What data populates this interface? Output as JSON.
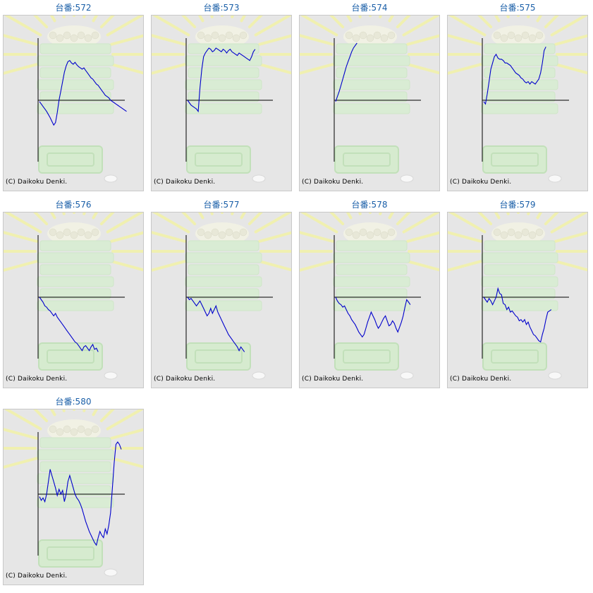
{
  "machine_prefix": "台番:",
  "copyright": "(C) Daikoku Denki.",
  "line_color": "#0000cc",
  "link_color": "#1a5fa8",
  "background_image": "slot-machine-watermark-icon",
  "machines": [
    {
      "number": "572",
      "chart_data": {
        "type": "line",
        "x_range": [
          0,
          100
        ],
        "y_range": [
          -100,
          100
        ],
        "values": [
          -2,
          -6,
          -10,
          -14,
          -18,
          -23,
          -28,
          -34,
          -40,
          -36,
          -20,
          0,
          15,
          30,
          45,
          55,
          62,
          64,
          60,
          58,
          61,
          57,
          54,
          52,
          50,
          52,
          48,
          44,
          40,
          36,
          34,
          30,
          26,
          24,
          20,
          16,
          12,
          8,
          6,
          4,
          0,
          -2,
          -4,
          -6,
          -8,
          -10,
          -12,
          -14,
          -16,
          -18
        ]
      }
    },
    {
      "number": "573",
      "chart_data": {
        "type": "line",
        "x_range": [
          0,
          100
        ],
        "y_range": [
          -100,
          100
        ],
        "values": [
          0,
          -4,
          -8,
          -10,
          -12,
          -14,
          -18,
          20,
          50,
          70,
          76,
          80,
          84,
          82,
          78,
          80,
          84,
          82,
          80,
          78,
          82,
          80,
          76,
          80,
          82,
          78,
          76,
          74,
          72,
          76,
          74,
          72,
          70,
          68,
          66,
          64,
          70,
          78,
          82
        ]
      }
    },
    {
      "number": "574",
      "chart_data": {
        "type": "line",
        "x_range": [
          0,
          100
        ],
        "y_range": [
          -100,
          100
        ],
        "values": [
          -2,
          6,
          14,
          24,
          34,
          44,
          54,
          62,
          70,
          78,
          84,
          88,
          92
        ]
      }
    },
    {
      "number": "575",
      "chart_data": {
        "type": "line",
        "x_range": [
          0,
          100
        ],
        "y_range": [
          -100,
          100
        ],
        "values": [
          -2,
          -6,
          10,
          30,
          50,
          60,
          70,
          74,
          68,
          66,
          66,
          64,
          60,
          60,
          58,
          56,
          52,
          48,
          44,
          42,
          40,
          36,
          34,
          30,
          28,
          30,
          26,
          30,
          28,
          26,
          30,
          34,
          44,
          60,
          80,
          86
        ]
      }
    },
    {
      "number": "576",
      "chart_data": {
        "type": "line",
        "x_range": [
          0,
          100
        ],
        "y_range": [
          -100,
          100
        ],
        "values": [
          0,
          -4,
          -8,
          -14,
          -16,
          -20,
          -22,
          -26,
          -30,
          -26,
          -32,
          -36,
          -40,
          -44,
          -48,
          -52,
          -56,
          -60,
          -64,
          -68,
          -72,
          -74,
          -78,
          -82,
          -86,
          -80,
          -78,
          -82,
          -86,
          -80,
          -76,
          -84,
          -82,
          -88
        ]
      }
    },
    {
      "number": "577",
      "chart_data": {
        "type": "line",
        "x_range": [
          0,
          100
        ],
        "y_range": [
          -100,
          100
        ],
        "values": [
          0,
          -4,
          -2,
          -6,
          -10,
          -14,
          -10,
          -6,
          -12,
          -18,
          -24,
          -30,
          -26,
          -18,
          -26,
          -20,
          -14,
          -24,
          -30,
          -36,
          -42,
          -48,
          -54,
          -60,
          -64,
          -68,
          -72,
          -76,
          -80,
          -86,
          -80,
          -84,
          -88
        ]
      }
    },
    {
      "number": "578",
      "chart_data": {
        "type": "line",
        "x_range": [
          0,
          100
        ],
        "y_range": [
          -100,
          100
        ],
        "values": [
          0,
          -6,
          -10,
          -12,
          -16,
          -14,
          -20,
          -26,
          -30,
          -36,
          -40,
          -44,
          -50,
          -56,
          -60,
          -64,
          -60,
          -50,
          -40,
          -32,
          -24,
          -30,
          -36,
          -44,
          -50,
          -46,
          -40,
          -34,
          -30,
          -38,
          -46,
          -44,
          -38,
          -42,
          -50,
          -56,
          -48,
          -40,
          -30,
          -16,
          -4,
          -8,
          -12
        ]
      }
    },
    {
      "number": "579",
      "chart_data": {
        "type": "line",
        "x_range": [
          0,
          100
        ],
        "y_range": [
          -100,
          100
        ],
        "values": [
          0,
          -4,
          -8,
          -2,
          -6,
          -12,
          -6,
          0,
          14,
          6,
          4,
          -10,
          -12,
          -20,
          -16,
          -24,
          -22,
          -26,
          -30,
          -32,
          -38,
          -36,
          -40,
          -36,
          -44,
          -40,
          -48,
          -54,
          -60,
          -62,
          -66,
          -70,
          -72,
          -60,
          -50,
          -36,
          -24,
          -22,
          -20
        ]
      }
    },
    {
      "number": "580",
      "chart_data": {
        "type": "line",
        "x_range": [
          0,
          100
        ],
        "y_range": [
          -100,
          100
        ],
        "values": [
          -4,
          -10,
          -6,
          -12,
          0,
          20,
          40,
          30,
          20,
          10,
          -2,
          8,
          0,
          6,
          -12,
          0,
          20,
          30,
          20,
          10,
          0,
          -6,
          -10,
          -16,
          -24,
          -34,
          -44,
          -52,
          -60,
          -66,
          -72,
          -78,
          -82,
          -70,
          -60,
          -66,
          -70,
          -56,
          -64,
          -50,
          -30,
          10,
          50,
          80,
          84,
          80,
          72
        ]
      }
    }
  ]
}
